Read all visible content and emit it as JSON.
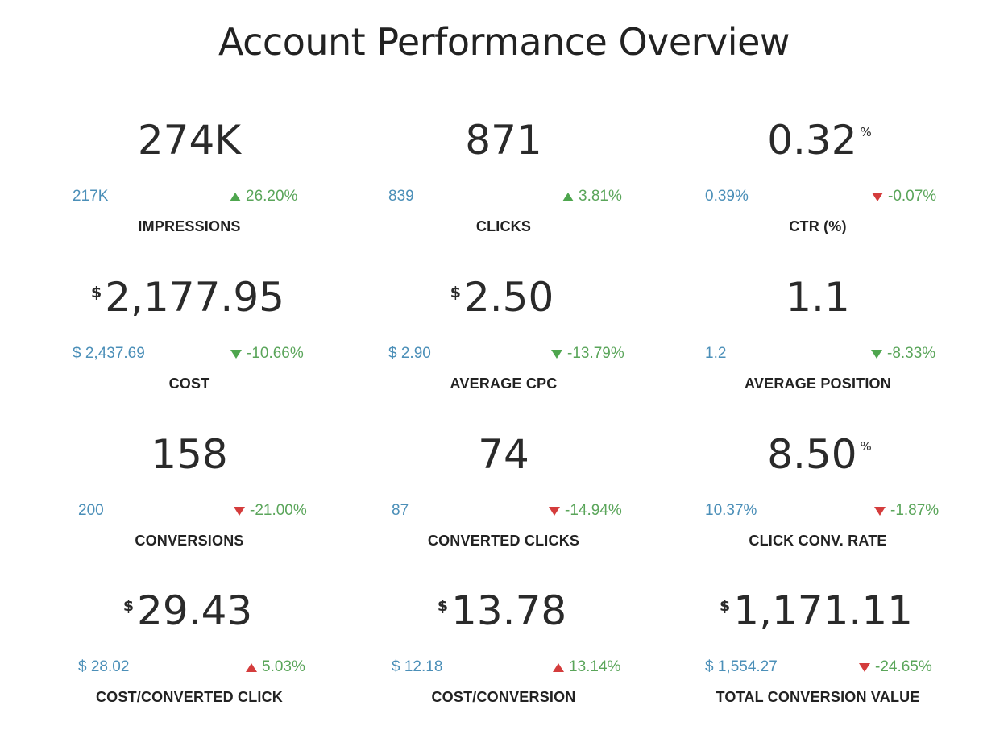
{
  "title": "Account Performance Overview",
  "colors": {
    "comparison_text": "#4b8fb8",
    "positive_change_text": "#5aa55a",
    "up_arrow": "#4ea64e",
    "down_arrow_green": "#4ea64e",
    "down_arrow_red": "#d43c3c",
    "up_arrow_red": "#d43c3c"
  },
  "metrics": [
    {
      "label": "IMPRESSIONS",
      "value": "274K",
      "prefix": "",
      "suffix": "",
      "previous": "217K",
      "change": "26.20%",
      "direction": "up",
      "arrow_color": "green"
    },
    {
      "label": "CLICKS",
      "value": "871",
      "prefix": "",
      "suffix": "",
      "previous": "839",
      "change": "3.81%",
      "direction": "up",
      "arrow_color": "green"
    },
    {
      "label": "CTR (%)",
      "value": "0.32",
      "prefix": "",
      "suffix": "%",
      "previous": "0.39%",
      "change": "-0.07%",
      "direction": "down",
      "arrow_color": "red"
    },
    {
      "label": "COST",
      "value": "2,177.95",
      "prefix": "$",
      "suffix": "",
      "previous": "$ 2,437.69",
      "change": "-10.66%",
      "direction": "down",
      "arrow_color": "green"
    },
    {
      "label": "AVERAGE CPC",
      "value": "2.50",
      "prefix": "$",
      "suffix": "",
      "previous": "$ 2.90",
      "change": "-13.79%",
      "direction": "down",
      "arrow_color": "green"
    },
    {
      "label": "AVERAGE POSITION",
      "value": "1.1",
      "prefix": "",
      "suffix": "",
      "previous": "1.2",
      "change": "-8.33%",
      "direction": "down",
      "arrow_color": "green"
    },
    {
      "label": "CONVERSIONS",
      "value": "158",
      "prefix": "",
      "suffix": "",
      "previous": "200",
      "change": "-21.00%",
      "direction": "down",
      "arrow_color": "red"
    },
    {
      "label": "CONVERTED CLICKS",
      "value": "74",
      "prefix": "",
      "suffix": "",
      "previous": "87",
      "change": "-14.94%",
      "direction": "down",
      "arrow_color": "red"
    },
    {
      "label": "CLICK CONV. RATE",
      "value": "8.50",
      "prefix": "",
      "suffix": "%",
      "previous": "10.37%",
      "change": "-1.87%",
      "direction": "down",
      "arrow_color": "red"
    },
    {
      "label": "COST/CONVERTED CLICK",
      "value": "29.43",
      "prefix": "$",
      "suffix": "",
      "previous": "$ 28.02",
      "change": "5.03%",
      "direction": "up",
      "arrow_color": "red"
    },
    {
      "label": "COST/CONVERSION",
      "value": "13.78",
      "prefix": "$",
      "suffix": "",
      "previous": "$ 12.18",
      "change": "13.14%",
      "direction": "up",
      "arrow_color": "red"
    },
    {
      "label": "TOTAL CONVERSION VALUE",
      "value": "1,171.11",
      "prefix": "$",
      "suffix": "",
      "previous": "$ 1,554.27",
      "change": "-24.65%",
      "direction": "down",
      "arrow_color": "red"
    }
  ]
}
